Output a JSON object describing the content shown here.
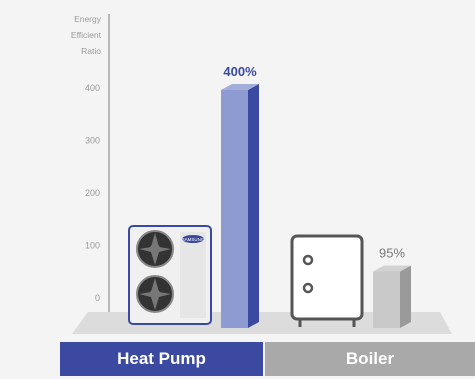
{
  "chart_data": {
    "type": "bar",
    "ylabel": "Energy Efficient Ratio",
    "yticks": [
      0,
      100,
      200,
      300,
      400
    ],
    "ylim": [
      0,
      400
    ],
    "categories": [
      "Heat Pump",
      "Boiler"
    ],
    "values": [
      400,
      95
    ],
    "data_labels": [
      "400%",
      "95%"
    ],
    "colors": {
      "heat_pump": "#8e9bd3",
      "heat_pump_dark": "#3b4aa0",
      "boiler": "#c9c9c9",
      "boiler_dark": "#9a9a9a",
      "label_heat_pump": "#3b4aa0",
      "label_boiler": "#7a7a7a"
    },
    "grid": false,
    "legend": "none"
  },
  "product_images": {
    "heat_pump_unit_icon": "outdoor-unit-icon",
    "heat_pump_brand": "SAMSUNG",
    "boiler_icon": "boiler-icon"
  }
}
